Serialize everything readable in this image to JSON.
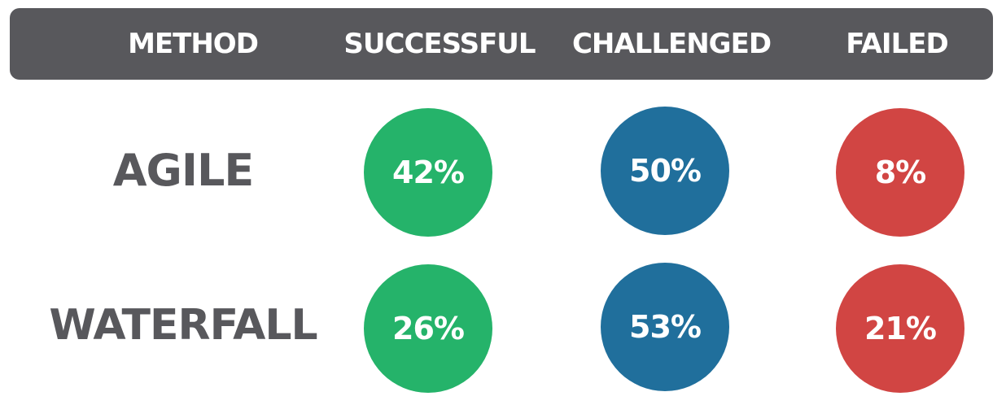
{
  "chart_data": {
    "type": "table",
    "columns": [
      "METHOD",
      "SUCCESSFUL",
      "CHALLENGED",
      "FAILED"
    ],
    "rows": [
      {
        "method": "AGILE",
        "cells": [
          {
            "label": "42%",
            "value": 42,
            "color": "#25b36a"
          },
          {
            "label": "50%",
            "value": 50,
            "color": "#206f9c"
          },
          {
            "label": "8%",
            "value": 8,
            "color": "#d14543"
          }
        ]
      },
      {
        "method": "WATERFALL",
        "cells": [
          {
            "label": "26%",
            "value": 26,
            "color": "#25b36a"
          },
          {
            "label": "53%",
            "value": 53,
            "color": "#206f9c"
          },
          {
            "label": "21%",
            "value": 21,
            "color": "#d14543"
          }
        ]
      }
    ]
  },
  "colors": {
    "header_bg": "#58585c",
    "label_text": "#58585c",
    "successful": "#25b36a",
    "challenged": "#206f9c",
    "failed": "#d14543"
  }
}
